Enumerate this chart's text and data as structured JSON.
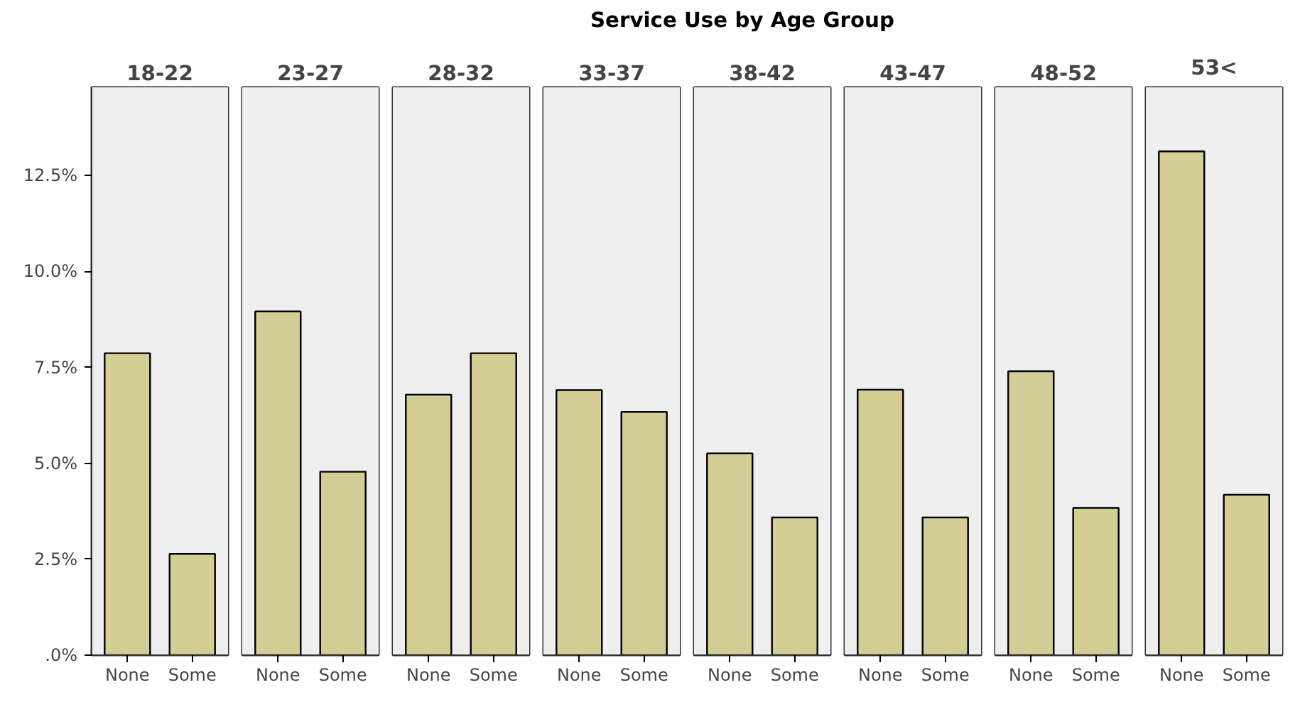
{
  "chart_data": [
    {
      "type": "other",
      "title": "Service Use by Age Group"
    },
    {
      "type": "bar",
      "subtitle": "18-22",
      "categories": [
        "None",
        "Some"
      ],
      "values": [
        7.87,
        2.64
      ],
      "color": "#d3cd96",
      "ylim": [
        0,
        14.8
      ],
      "yticks": [
        {
          "value": 0,
          "label": ".0%"
        },
        {
          "value": 2.5,
          "label": "2.5%"
        },
        {
          "value": 5,
          "label": "5.0%"
        },
        {
          "value": 7.5,
          "label": "7.5%"
        },
        {
          "value": 10,
          "label": "10.0%"
        },
        {
          "value": 12.5,
          "label": "12.5%"
        }
      ],
      "grid": false
    },
    {
      "type": "bar",
      "subtitle": "23-27",
      "categories": [
        "None",
        "Some"
      ],
      "values": [
        8.96,
        4.78
      ],
      "color": "#d3cd96",
      "ylim": [
        0,
        14.8
      ],
      "tick_labels": "x",
      "grid": false
    },
    {
      "type": "bar",
      "subtitle": "28-32",
      "categories": [
        "None",
        "Some"
      ],
      "values": [
        6.79,
        7.87
      ],
      "color": "#d3cd96",
      "ylim": [
        0,
        14.8
      ],
      "tick_labels": "x",
      "grid": false
    },
    {
      "type": "bar",
      "subtitle": "33-37",
      "categories": [
        "None",
        "Some"
      ],
      "values": [
        6.91,
        6.34
      ],
      "color": "#d3cd96",
      "ylim": [
        0,
        14.8
      ],
      "tick_labels": "x",
      "grid": false
    },
    {
      "type": "bar",
      "subtitle": "38-42",
      "categories": [
        "None",
        "Some"
      ],
      "values": [
        5.26,
        3.59
      ],
      "color": "#d3cd96",
      "ylim": [
        0,
        14.8
      ],
      "tick_labels": "x",
      "grid": false
    },
    {
      "type": "bar",
      "subtitle": "43-47",
      "categories": [
        "None",
        "Some"
      ],
      "values": [
        6.92,
        3.59
      ],
      "color": "#d3cd96",
      "ylim": [
        0,
        14.8
      ],
      "tick_labels": "x",
      "grid": false
    },
    {
      "type": "bar",
      "subtitle": "48-52",
      "categories": [
        "None",
        "Some"
      ],
      "values": [
        7.4,
        3.84
      ],
      "color": "#d3cd96",
      "ylim": [
        0,
        14.8
      ],
      "tick_labels": "x",
      "grid": false
    },
    {
      "type": "bar",
      "subtitle": "53<",
      "categories": [
        "None",
        "Some"
      ],
      "values": [
        13.13,
        4.18
      ],
      "color": "#d3cd96",
      "ylim": [
        0,
        14.8
      ],
      "tick_labels": "x",
      "grid": false
    }
  ]
}
